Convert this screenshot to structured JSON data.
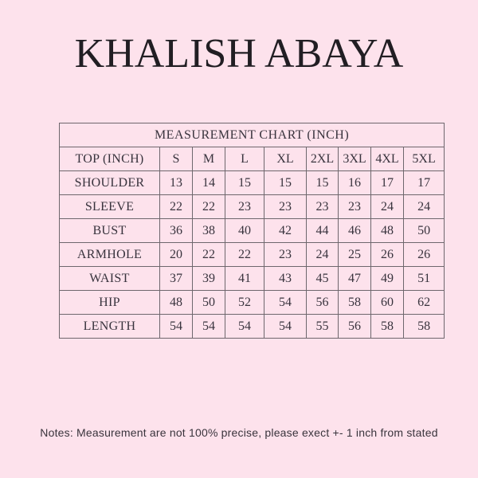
{
  "page": {
    "title": "KHALISH ABAYA",
    "notes": "Notes: Measurement are not 100% precise, please exect +- 1 inch from stated"
  },
  "table": {
    "header": "MEASUREMENT CHART (INCH)",
    "corner_label": "TOP (INCH)",
    "size_columns": [
      "S",
      "M",
      "L",
      "XL",
      "2XL",
      "3XL",
      "4XL",
      "5XL"
    ],
    "rows": [
      {
        "label": "SHOULDER",
        "values": [
          13,
          14,
          15,
          15,
          15,
          16,
          17,
          17
        ]
      },
      {
        "label": "SLEEVE",
        "values": [
          22,
          22,
          23,
          23,
          23,
          23,
          24,
          24
        ]
      },
      {
        "label": "BUST",
        "values": [
          36,
          38,
          40,
          42,
          44,
          46,
          48,
          50
        ]
      },
      {
        "label": "ARMHOLE",
        "values": [
          20,
          22,
          22,
          23,
          24,
          25,
          26,
          26
        ]
      },
      {
        "label": "WAIST",
        "values": [
          37,
          39,
          41,
          43,
          45,
          47,
          49,
          51
        ]
      },
      {
        "label": "HIP",
        "values": [
          48,
          50,
          52,
          54,
          56,
          58,
          60,
          62
        ]
      },
      {
        "label": "LENGTH",
        "values": [
          54,
          54,
          54,
          54,
          55,
          56,
          58,
          58
        ]
      }
    ]
  },
  "colors": {
    "background": "#fde2ec",
    "table_border": "#6e676d",
    "title_text": "#211e23",
    "table_text": "#38333d",
    "notes_text": "#39343c"
  }
}
